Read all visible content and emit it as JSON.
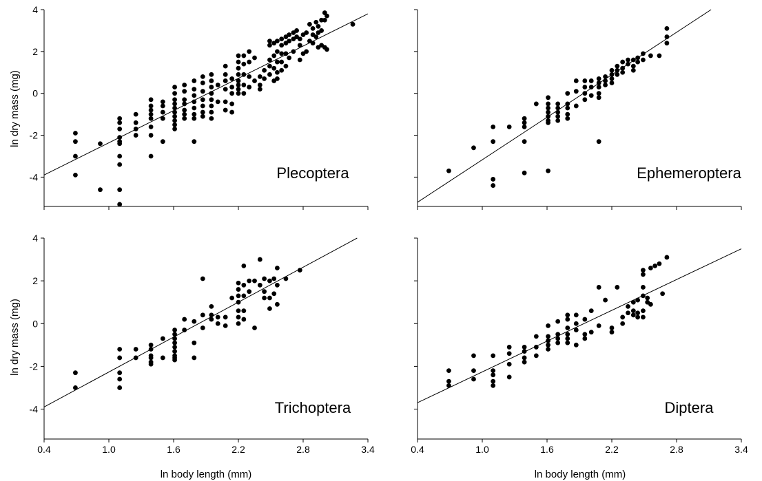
{
  "figure": {
    "shared_xlabel_left": "ln  body length (mm)",
    "shared_xlabel_right": "ln body length (mm)",
    "shared_ylabel": "ln dry mass (mg)"
  },
  "chart_data": [
    {
      "type": "scatter",
      "title": "Plecoptera",
      "xlabel": "",
      "ylabel": "ln dry mass (mg)",
      "xlim": [
        0.4,
        3.4
      ],
      "ylim": [
        -5.4,
        4.0
      ],
      "xticks": [],
      "xtick_labels": [],
      "yticks": [
        4,
        2,
        0,
        -2,
        -4
      ],
      "ytick_labels": [
        "4",
        "2",
        "0",
        "-2",
        "-4"
      ],
      "fit_line": {
        "x": [
          0.4,
          3.4
        ],
        "y": [
          -3.9,
          3.8
        ]
      },
      "points": {
        "x": [
          0.69,
          0.69,
          0.69,
          0.69,
          0.92,
          0.92,
          1.1,
          1.1,
          1.1,
          1.1,
          1.1,
          1.1,
          1.1,
          1.1,
          1.1,
          1.1,
          1.25,
          1.25,
          1.25,
          1.25,
          1.39,
          1.39,
          1.39,
          1.39,
          1.39,
          1.39,
          1.39,
          1.39,
          1.5,
          1.5,
          1.5,
          1.5,
          1.5,
          1.61,
          1.61,
          1.61,
          1.61,
          1.61,
          1.61,
          1.61,
          1.61,
          1.61,
          1.61,
          1.7,
          1.7,
          1.7,
          1.7,
          1.7,
          1.7,
          1.7,
          1.79,
          1.79,
          1.79,
          1.79,
          1.79,
          1.79,
          1.79,
          1.79,
          1.87,
          1.87,
          1.87,
          1.87,
          1.87,
          1.87,
          1.87,
          1.95,
          1.95,
          1.95,
          1.95,
          1.95,
          1.95,
          1.95,
          1.95,
          2.01,
          2.01,
          2.08,
          2.08,
          2.08,
          2.08,
          2.08,
          2.08,
          2.14,
          2.14,
          2.14,
          2.14,
          2.14,
          2.2,
          2.2,
          2.2,
          2.2,
          2.2,
          2.2,
          2.2,
          2.2,
          2.25,
          2.25,
          2.25,
          2.25,
          2.25,
          2.3,
          2.3,
          2.3,
          2.3,
          2.35,
          2.35,
          2.4,
          2.4,
          2.4,
          2.44,
          2.44,
          2.49,
          2.49,
          2.49,
          2.49,
          2.49,
          2.53,
          2.53,
          2.53,
          2.53,
          2.56,
          2.56,
          2.56,
          2.56,
          2.56,
          2.6,
          2.6,
          2.6,
          2.6,
          2.6,
          2.64,
          2.64,
          2.64,
          2.64,
          2.67,
          2.67,
          2.67,
          2.71,
          2.71,
          2.71,
          2.74,
          2.74,
          2.77,
          2.77,
          2.77,
          2.8,
          2.8,
          2.83,
          2.83,
          2.86,
          2.86,
          2.89,
          2.89,
          2.89,
          2.92,
          2.92,
          2.94,
          2.94,
          2.94,
          2.97,
          2.97,
          2.97,
          3.0,
          3.0,
          3.0,
          3.02,
          3.02,
          3.26
        ],
        "y": [
          -1.9,
          -2.3,
          -3.0,
          -3.9,
          -2.4,
          -4.6,
          -1.2,
          -1.4,
          -1.7,
          -2.1,
          -2.3,
          -2.4,
          -3.0,
          -3.4,
          -4.6,
          -5.3,
          -1.0,
          -1.4,
          -1.7,
          -2.0,
          -0.3,
          -0.6,
          -0.8,
          -1.0,
          -1.2,
          -1.6,
          -2.0,
          -3.0,
          -0.4,
          -0.6,
          -0.9,
          -1.2,
          -2.3,
          0.3,
          0.0,
          -0.3,
          -0.5,
          -0.7,
          -0.9,
          -1.1,
          -1.3,
          -1.5,
          -1.7,
          0.4,
          0.1,
          -0.3,
          -0.5,
          -0.8,
          -1.0,
          -1.2,
          0.6,
          0.2,
          -0.1,
          -0.4,
          -0.7,
          -1.0,
          -1.2,
          -2.3,
          0.8,
          0.5,
          0.1,
          -0.3,
          -0.6,
          -0.9,
          -1.1,
          0.9,
          0.6,
          0.3,
          0.0,
          -0.3,
          -0.6,
          -0.9,
          -1.2,
          0.4,
          -0.4,
          1.3,
          0.9,
          0.6,
          0.2,
          -0.4,
          -0.8,
          0.7,
          0.3,
          0.0,
          -0.5,
          -0.9,
          1.8,
          1.5,
          1.2,
          0.9,
          0.6,
          0.4,
          0.2,
          0.0,
          1.8,
          1.4,
          0.9,
          0.4,
          0.0,
          2.0,
          1.5,
          0.8,
          0.3,
          1.7,
          0.6,
          0.8,
          0.4,
          0.2,
          1.1,
          0.7,
          2.5,
          2.3,
          1.6,
          1.3,
          0.9,
          2.4,
          1.8,
          1.2,
          0.6,
          2.5,
          2.0,
          1.5,
          1.0,
          0.7,
          2.6,
          2.3,
          1.9,
          1.5,
          1.1,
          2.7,
          2.4,
          1.9,
          1.3,
          2.8,
          2.5,
          1.7,
          2.9,
          2.6,
          2.0,
          3.0,
          2.7,
          2.6,
          2.3,
          1.6,
          2.8,
          1.9,
          2.9,
          2.0,
          3.3,
          2.5,
          3.1,
          2.8,
          2.4,
          3.4,
          2.7,
          3.2,
          2.9,
          2.2,
          3.5,
          3.0,
          2.3,
          3.85,
          3.5,
          2.2,
          3.7,
          2.1,
          3.3
        ]
      }
    },
    {
      "type": "scatter",
      "title": "Ephemeroptera",
      "xlabel": "",
      "ylabel": "",
      "xlim": [
        0.4,
        3.4
      ],
      "ylim": [
        -5.4,
        4.0
      ],
      "xticks": [],
      "xtick_labels": [],
      "yticks": [
        4,
        2,
        0,
        -2,
        -4
      ],
      "ytick_labels": [],
      "fit_line": {
        "x": [
          0.4,
          3.12
        ],
        "y": [
          -5.2,
          4.0
        ]
      },
      "points": {
        "x": [
          0.69,
          0.92,
          1.1,
          1.1,
          1.1,
          1.1,
          1.25,
          1.39,
          1.39,
          1.39,
          1.39,
          1.39,
          1.5,
          1.61,
          1.61,
          1.61,
          1.61,
          1.61,
          1.61,
          1.61,
          1.61,
          1.7,
          1.7,
          1.7,
          1.7,
          1.7,
          1.79,
          1.79,
          1.79,
          1.79,
          1.79,
          1.87,
          1.87,
          1.87,
          1.95,
          1.95,
          1.95,
          1.95,
          2.01,
          2.01,
          2.01,
          2.08,
          2.08,
          2.08,
          2.08,
          2.08,
          2.08,
          2.14,
          2.14,
          2.14,
          2.2,
          2.2,
          2.2,
          2.2,
          2.25,
          2.25,
          2.25,
          2.3,
          2.3,
          2.3,
          2.35,
          2.35,
          2.4,
          2.4,
          2.4,
          2.44,
          2.44,
          2.49,
          2.49,
          2.56,
          2.64,
          2.71,
          2.71,
          2.71
        ],
        "y": [
          -3.7,
          -2.6,
          -1.6,
          -2.3,
          -4.1,
          -4.4,
          -1.6,
          -1.2,
          -1.4,
          -1.6,
          -2.3,
          -3.8,
          -0.5,
          -0.2,
          -0.5,
          -0.7,
          -0.9,
          -1.1,
          -1.3,
          -1.4,
          -3.7,
          -0.5,
          -0.7,
          -0.9,
          -1.1,
          -1.3,
          0.0,
          -0.5,
          -0.7,
          -1.0,
          -1.2,
          0.6,
          0.1,
          -0.6,
          0.6,
          0.3,
          0.0,
          -0.3,
          0.6,
          0.3,
          -0.1,
          0.7,
          0.5,
          0.3,
          0.0,
          -0.2,
          -2.3,
          0.8,
          0.6,
          0.4,
          1.1,
          0.9,
          0.7,
          0.5,
          1.3,
          1.1,
          0.9,
          1.5,
          1.2,
          1.0,
          1.6,
          1.4,
          1.6,
          1.3,
          1.1,
          1.7,
          1.5,
          1.9,
          1.6,
          1.8,
          1.8,
          3.1,
          2.7,
          2.4
        ]
      }
    },
    {
      "type": "scatter",
      "title": "Trichoptera",
      "xlabel": "ln  body length (mm)",
      "ylabel": "ln dry mass (mg)",
      "xlim": [
        0.4,
        3.4
      ],
      "ylim": [
        -5.4,
        4.0
      ],
      "xticks": [
        0.4,
        1.0,
        1.6,
        2.2,
        2.8,
        3.4
      ],
      "xtick_labels": [
        "0.4",
        "1.0",
        "1.6",
        "2.2",
        "2.8",
        "3.4"
      ],
      "yticks": [
        4,
        2,
        0,
        -2,
        -4
      ],
      "ytick_labels": [
        "4",
        "2",
        "0",
        "-2",
        "-4"
      ],
      "fit_line": {
        "x": [
          0.4,
          3.3
        ],
        "y": [
          -3.9,
          4.0
        ]
      },
      "points": {
        "x": [
          0.69,
          0.69,
          1.1,
          1.1,
          1.1,
          1.1,
          1.1,
          1.25,
          1.25,
          1.39,
          1.39,
          1.39,
          1.39,
          1.39,
          1.39,
          1.5,
          1.5,
          1.61,
          1.61,
          1.61,
          1.61,
          1.61,
          1.61,
          1.61,
          1.61,
          1.61,
          1.7,
          1.7,
          1.79,
          1.79,
          1.79,
          1.87,
          1.87,
          1.87,
          1.95,
          1.95,
          1.95,
          2.01,
          2.01,
          2.08,
          2.08,
          2.14,
          2.2,
          2.2,
          2.2,
          2.2,
          2.2,
          2.2,
          2.2,
          2.25,
          2.25,
          2.25,
          2.25,
          2.25,
          2.3,
          2.3,
          2.35,
          2.35,
          2.4,
          2.4,
          2.44,
          2.44,
          2.44,
          2.49,
          2.49,
          2.49,
          2.53,
          2.53,
          2.56,
          2.56,
          2.56,
          2.64,
          2.77
        ],
        "y": [
          -2.3,
          -3.0,
          -1.2,
          -1.6,
          -2.3,
          -2.6,
          -3.0,
          -1.2,
          -1.6,
          -1.0,
          -1.2,
          -1.5,
          -1.6,
          -1.8,
          -1.9,
          -0.7,
          -1.6,
          -0.3,
          -0.5,
          -0.7,
          -0.9,
          -1.1,
          -1.3,
          -1.5,
          -1.6,
          -1.7,
          0.2,
          -0.3,
          0.1,
          -0.9,
          -1.6,
          2.1,
          0.4,
          -0.2,
          0.8,
          0.4,
          0.2,
          0.3,
          0.0,
          0.3,
          -0.1,
          1.2,
          1.9,
          1.6,
          1.3,
          1.0,
          0.6,
          0.3,
          0.0,
          2.7,
          1.8,
          1.3,
          0.6,
          0.2,
          2.0,
          1.5,
          2.0,
          -0.2,
          3.0,
          1.8,
          2.1,
          1.5,
          1.2,
          2.0,
          1.2,
          0.7,
          2.1,
          1.4,
          2.6,
          1.8,
          0.9,
          2.1,
          2.5
        ]
      }
    },
    {
      "type": "scatter",
      "title": "Diptera",
      "xlabel": "ln body length (mm)",
      "ylabel": "",
      "xlim": [
        0.4,
        3.4
      ],
      "ylim": [
        -5.4,
        4.0
      ],
      "xticks": [
        0.4,
        1.0,
        1.6,
        2.2,
        2.8,
        3.4
      ],
      "xtick_labels": [
        "0.4",
        "1.0",
        "1.6",
        "2.2",
        "2.8",
        "3.4"
      ],
      "yticks": [
        4,
        2,
        0,
        -2,
        -4
      ],
      "ytick_labels": [],
      "fit_line": {
        "x": [
          0.4,
          3.4
        ],
        "y": [
          -3.7,
          3.5
        ]
      },
      "points": {
        "x": [
          0.69,
          0.69,
          0.69,
          0.92,
          0.92,
          0.92,
          1.1,
          1.1,
          1.1,
          1.1,
          1.1,
          1.25,
          1.25,
          1.25,
          1.25,
          1.39,
          1.39,
          1.39,
          1.39,
          1.5,
          1.5,
          1.5,
          1.61,
          1.61,
          1.61,
          1.61,
          1.61,
          1.7,
          1.7,
          1.7,
          1.7,
          1.79,
          1.79,
          1.79,
          1.79,
          1.79,
          1.79,
          1.87,
          1.87,
          1.87,
          1.87,
          1.95,
          1.95,
          1.95,
          2.01,
          2.01,
          2.08,
          2.08,
          2.14,
          2.2,
          2.2,
          2.25,
          2.3,
          2.3,
          2.35,
          2.35,
          2.4,
          2.4,
          2.4,
          2.44,
          2.44,
          2.44,
          2.49,
          2.49,
          2.49,
          2.49,
          2.49,
          2.49,
          2.53,
          2.53,
          2.56,
          2.56,
          2.6,
          2.64,
          2.67,
          2.71
        ],
        "y": [
          -2.2,
          -2.7,
          -2.9,
          -1.5,
          -2.2,
          -2.6,
          -1.5,
          -2.2,
          -2.4,
          -2.7,
          -2.9,
          -1.1,
          -1.4,
          -1.9,
          -2.5,
          -1.1,
          -1.3,
          -1.6,
          -1.8,
          -0.6,
          -1.1,
          -1.5,
          -0.1,
          -0.6,
          -0.8,
          -1.0,
          -1.2,
          0.1,
          -0.5,
          -0.7,
          -0.9,
          0.4,
          0.2,
          -0.2,
          -0.5,
          -0.7,
          -0.9,
          0.4,
          0.0,
          -0.3,
          -1.0,
          0.2,
          -0.5,
          -0.7,
          0.6,
          -0.4,
          1.7,
          -0.1,
          1.1,
          -0.2,
          -0.4,
          1.7,
          0.0,
          0.3,
          0.5,
          0.8,
          0.4,
          0.6,
          1.0,
          0.3,
          0.5,
          1.1,
          2.5,
          2.3,
          1.7,
          1.3,
          0.6,
          0.3,
          1.2,
          1.0,
          2.6,
          0.9,
          2.7,
          2.8,
          1.4,
          3.1
        ]
      }
    }
  ]
}
